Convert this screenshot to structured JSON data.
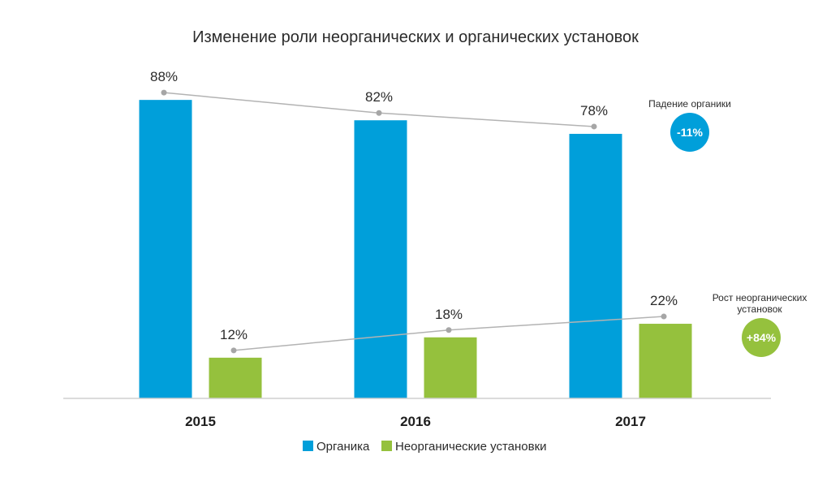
{
  "chart_data": {
    "type": "bar",
    "title": "Изменение роли неорганических и органических установок",
    "categories": [
      "2015",
      "2016",
      "2017"
    ],
    "series": [
      {
        "name": "Органика",
        "values": [
          88,
          82,
          78
        ],
        "labels": [
          "88%",
          "82%",
          "78%"
        ],
        "color": "#009fda"
      },
      {
        "name": "Неорганические установки",
        "values": [
          12,
          18,
          22
        ],
        "labels": [
          "12%",
          "18%",
          "22%"
        ],
        "color": "#95c13d"
      }
    ],
    "ylim": [
      0,
      100
    ],
    "grid": false,
    "legend": "bottom-center",
    "annotations": [
      {
        "series": "Органика",
        "text": "Падение органики",
        "badge": "-11%",
        "badge_color": "#009fda"
      },
      {
        "series": "Неорганические установки",
        "text_lines": [
          "Рост неорганических",
          "установок"
        ],
        "badge": "+84%",
        "badge_color": "#95c13d"
      }
    ],
    "trend_line_color": "#b3b3b3",
    "axis_color": "#cfcfcf"
  }
}
